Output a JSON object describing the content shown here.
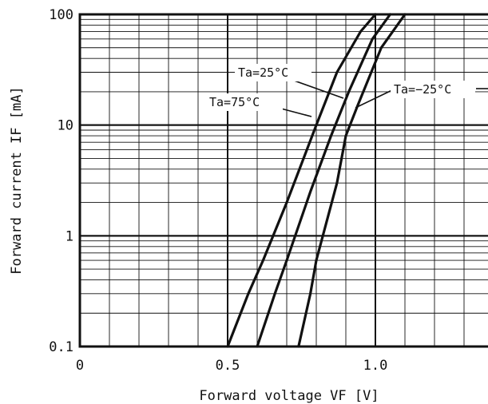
{
  "chart_data": {
    "type": "line",
    "title": "",
    "xlabel": "Forward voltage VF [V]",
    "ylabel": "Forward current IF [mA]",
    "x_ticks": [
      "0",
      "0.5",
      "1.0"
    ],
    "y_ticks": [
      "0.1",
      "1",
      "10",
      "100"
    ],
    "xlim": [
      0,
      1.4
    ],
    "ylim": [
      0.1,
      100
    ],
    "y_scale": "log",
    "grid": true,
    "series": [
      {
        "name": "Ta=75°C",
        "points": [
          [
            0.5,
            0.1
          ],
          [
            0.57,
            0.3
          ],
          [
            0.62,
            0.6
          ],
          [
            0.7,
            2.0
          ],
          [
            0.8,
            10
          ],
          [
            0.87,
            30
          ],
          [
            0.95,
            70
          ],
          [
            1.0,
            100
          ]
        ]
      },
      {
        "name": "Ta=25°C",
        "points": [
          [
            0.6,
            0.1
          ],
          [
            0.66,
            0.3
          ],
          [
            0.7,
            0.6
          ],
          [
            0.78,
            2.5
          ],
          [
            0.85,
            8
          ],
          [
            0.91,
            20
          ],
          [
            0.99,
            60
          ],
          [
            1.05,
            100
          ]
        ]
      },
      {
        "name": "Ta=−25°C",
        "points": [
          [
            0.74,
            0.1
          ],
          [
            0.78,
            0.3
          ],
          [
            0.8,
            0.6
          ],
          [
            0.87,
            3
          ],
          [
            0.9,
            8
          ],
          [
            0.94,
            15
          ],
          [
            1.02,
            50
          ],
          [
            1.1,
            100
          ]
        ]
      }
    ],
    "annotations": [
      {
        "text": "Ta=25°C",
        "series": 1
      },
      {
        "text": "Ta=75°C",
        "series": 0
      },
      {
        "text": "Ta=−25°C",
        "series": 2
      }
    ]
  }
}
